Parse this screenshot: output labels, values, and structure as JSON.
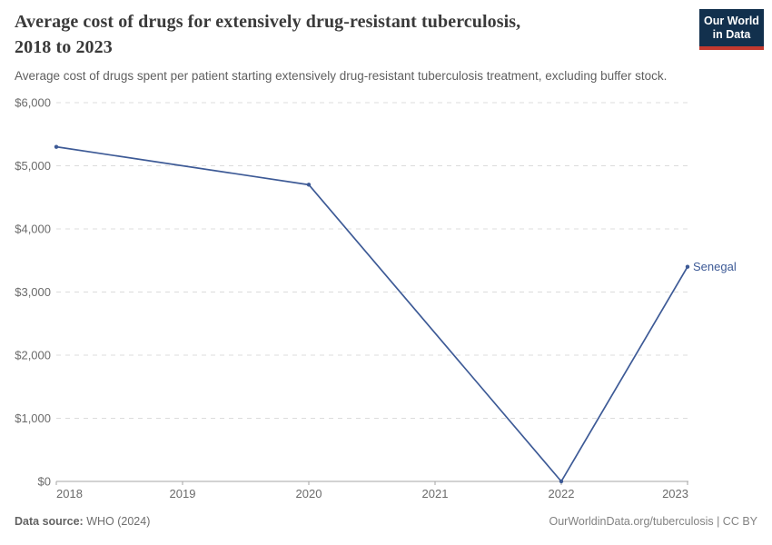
{
  "header": {
    "title_lines": [
      "Average cost of drugs for extensively drug-resistant tuberculosis,",
      "2018 to 2023"
    ],
    "subtitle": "Average cost of drugs spent per patient starting extensively drug-resistant tuberculosis treatment, excluding buffer stock."
  },
  "logo": {
    "line1": "Our World",
    "line2": "in Data",
    "bg_color": "#12304d",
    "bar_color": "#c3392f"
  },
  "chart_data": {
    "type": "line",
    "title": "Average cost of drugs for extensively drug-resistant tuberculosis, 2018 to 2023",
    "x": [
      2018,
      2020,
      2022,
      2023
    ],
    "series": [
      {
        "name": "Senegal",
        "values": [
          5300,
          4700,
          0,
          3400
        ],
        "color": "#3d5a96"
      }
    ],
    "end_label": "Senegal",
    "x_ticks": [
      "2018",
      "2019",
      "2020",
      "2021",
      "2022",
      "2023"
    ],
    "y_ticks": [
      {
        "value": 0,
        "label": "$0"
      },
      {
        "value": 1000,
        "label": "$1,000"
      },
      {
        "value": 2000,
        "label": "$2,000"
      },
      {
        "value": 3000,
        "label": "$3,000"
      },
      {
        "value": 4000,
        "label": "$4,000"
      },
      {
        "value": 5000,
        "label": "$5,000"
      },
      {
        "value": 6000,
        "label": "$6,000"
      }
    ],
    "xlim": [
      2018,
      2023
    ],
    "ylim": [
      0,
      6000
    ],
    "xlabel": "",
    "ylabel": "",
    "grid": "horizontal-dashed",
    "legend_position": "end-of-line",
    "colors": {
      "line": "#3d5a96",
      "gridline": "#dcdcdc",
      "axis": "#a5a5a5",
      "tick_text": "#6b6b6b"
    }
  },
  "footer": {
    "source_label": "Data source:",
    "source_value": " WHO (2024)",
    "credit": "OurWorldinData.org/tuberculosis | CC BY"
  }
}
